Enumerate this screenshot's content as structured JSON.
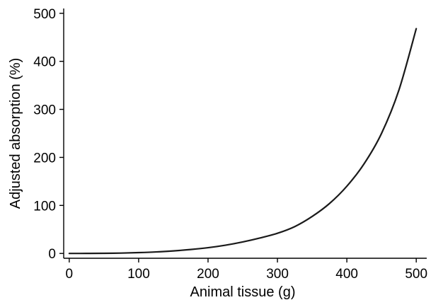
{
  "chart_data": {
    "type": "line",
    "title": "",
    "xlabel": "Animal tissue (g)",
    "ylabel": "Adjusted absorption (%)",
    "xlim": [
      -8,
      510
    ],
    "ylim": [
      -10,
      510
    ],
    "xticks": [
      0,
      100,
      200,
      300,
      400,
      500
    ],
    "yticks": [
      0,
      100,
      200,
      300,
      400,
      500
    ],
    "grid": false,
    "legend": "none",
    "colors": {
      "line": "#1a1a1a",
      "axis": "#000000"
    },
    "series": [
      {
        "x": [
          0,
          25,
          50,
          75,
          100,
          125,
          150,
          175,
          200,
          225,
          250,
          275,
          300,
          325,
          350,
          375,
          400,
          425,
          450,
          475,
          500
        ],
        "y": [
          0,
          0.1,
          0.3,
          0.8,
          1.8,
          3.2,
          5.3,
          8.2,
          12,
          17.2,
          24,
          32.3,
          42,
          56,
          77,
          104,
          140,
          187,
          250,
          340,
          468
        ]
      }
    ]
  }
}
